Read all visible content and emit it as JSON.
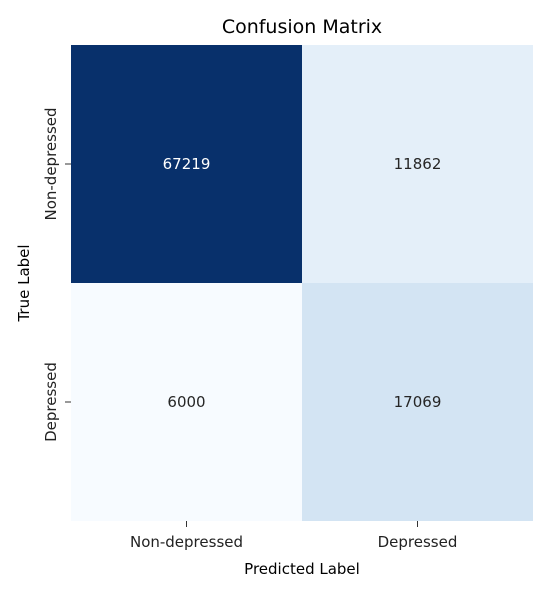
{
  "chart_data": {
    "type": "heatmap",
    "title": "Confusion Matrix",
    "xlabel": "Predicted Label",
    "ylabel": "True Label",
    "x_categories": [
      "Non-depressed",
      "Depressed"
    ],
    "y_categories": [
      "Non-depressed",
      "Depressed"
    ],
    "values": [
      [
        67219,
        11862
      ],
      [
        6000,
        17069
      ]
    ],
    "colormap": "Blues",
    "colorbar": false
  }
}
